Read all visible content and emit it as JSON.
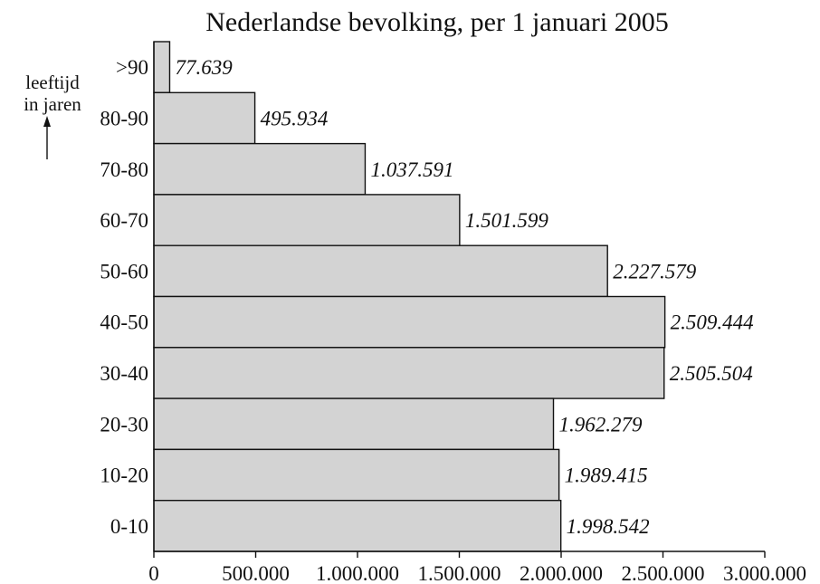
{
  "chart_data": {
    "type": "bar",
    "orientation": "horizontal",
    "title": "Nederlandse bevolking, per 1 januari 2005",
    "ylabel_lines": [
      "leeftijd",
      "in jaren"
    ],
    "ylabel_arrow": "up",
    "xlabel": "",
    "categories": [
      ">90",
      "80-90",
      "70-80",
      "60-70",
      "50-60",
      "40-50",
      "30-40",
      "20-30",
      "10-20",
      "0-10"
    ],
    "values": [
      77639,
      495934,
      1037591,
      1501599,
      2227579,
      2509444,
      2505504,
      1962279,
      1989415,
      1998542
    ],
    "value_labels": [
      "77.639",
      "495.934",
      "1.037.591",
      "1.501.599",
      "2.227.579",
      "2.509.444",
      "2.505.504",
      "1.962.279",
      "1.989.415",
      "1.998.542"
    ],
    "xlim": [
      0,
      3000000
    ],
    "xticks": [
      0,
      500000,
      1000000,
      1500000,
      2000000,
      2500000,
      3000000
    ],
    "xtick_labels": [
      "0",
      "500.000",
      "1.000.000",
      "1.500.000",
      "2.000.000",
      "2.500.000",
      "3.000.000"
    ],
    "grid": false,
    "legend": "none",
    "bar_color": "#d3d3d3",
    "edge_color": "#111111"
  }
}
